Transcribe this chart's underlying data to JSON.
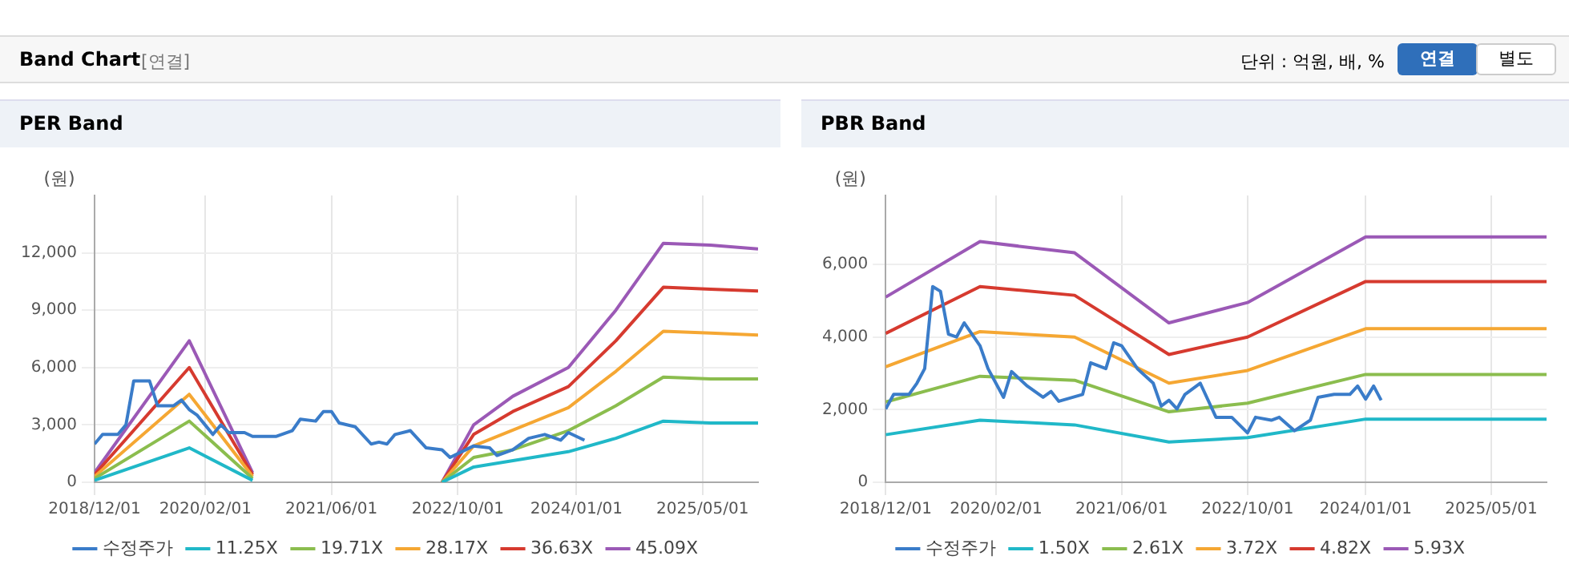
{
  "chart_data": [
    {
      "type": "other",
      "title": "Band Chart",
      "annotations": [
        "[연결]",
        "단위 : 억원, 배, %",
        "연결",
        "별도"
      ]
    },
    {
      "type": "line",
      "title": "PER Band",
      "ylabel": "(원)",
      "xlim": [
        "2018-12-01",
        "2025-12-01"
      ],
      "xticks": [
        {
          "value": "2018-12-01",
          "label": "2018/12/01"
        },
        {
          "value": "2020-02-01",
          "label": "2020/02/01"
        },
        {
          "value": "2021-06-01",
          "label": "2021/06/01"
        },
        {
          "value": "2022-10-01",
          "label": "2022/10/01"
        },
        {
          "value": "2024-01-01",
          "label": "2024/01/01"
        },
        {
          "value": "2025-05-01",
          "label": "2025/05/01"
        }
      ],
      "ylim": [
        0,
        15000
      ],
      "yticks": [
        {
          "value": 0,
          "label": "0"
        },
        {
          "value": 3000,
          "label": "3,000"
        },
        {
          "value": 6000,
          "label": "6,000"
        },
        {
          "value": 9000,
          "label": "9,000"
        },
        {
          "value": 12000,
          "label": "12,000"
        }
      ],
      "grid": true,
      "legend": "bottom",
      "marker": "none",
      "series": [
        {
          "name": "수정주가",
          "color": "#3a7cc9",
          "x": [
            "2018-12",
            "2019-01",
            "2019-03",
            "2019-04",
            "2019-05",
            "2019-07",
            "2019-08",
            "2019-10",
            "2019-11",
            "2019-12",
            "2020-01",
            "2020-03",
            "2020-04",
            "2020-05",
            "2020-07",
            "2020-08",
            "2020-11",
            "2021-01",
            "2021-02",
            "2021-04",
            "2021-05",
            "2021-06",
            "2021-07",
            "2021-09",
            "2021-11",
            "2021-12",
            "2022-01",
            "2022-02",
            "2022-04",
            "2022-06",
            "2022-08",
            "2022-09",
            "2022-12",
            "2023-02",
            "2023-03",
            "2023-05",
            "2023-07",
            "2023-09",
            "2023-11",
            "2023-12",
            "2024-02"
          ],
          "values": [
            2000,
            2500,
            2500,
            3000,
            5300,
            5300,
            4000,
            4000,
            4300,
            3800,
            3500,
            2500,
            3000,
            2600,
            2600,
            2400,
            2400,
            2700,
            3300,
            3200,
            3700,
            3700,
            3100,
            2900,
            2000,
            2100,
            2000,
            2500,
            2700,
            1800,
            1700,
            1300,
            1900,
            1800,
            1400,
            1700,
            2300,
            2500,
            2200,
            2600,
            2200
          ]
        },
        {
          "name": "11.25X",
          "color": "#20b8c8",
          "x": [
            "2018-12",
            "2019-12",
            "2020-08",
            "2021-06",
            "2022-08",
            "2022-12",
            "2023-12",
            "2024-06",
            "2024-12",
            "2025-06",
            "2025-12"
          ],
          "values": [
            100,
            1800,
            100,
            null,
            0,
            800,
            1600,
            2300,
            3200,
            3100,
            3100
          ]
        },
        {
          "name": "19.71X",
          "color": "#8bbd4e",
          "x": [
            "2018-12",
            "2019-12",
            "2020-08",
            "2021-06",
            "2022-08",
            "2022-12",
            "2023-05",
            "2023-12",
            "2024-06",
            "2024-12",
            "2025-06",
            "2025-12"
          ],
          "values": [
            200,
            3200,
            200,
            null,
            0,
            1300,
            1700,
            2700,
            4000,
            5500,
            5400,
            5400
          ]
        },
        {
          "name": "28.17X",
          "color": "#f5a733",
          "x": [
            "2018-12",
            "2019-12",
            "2020-08",
            "2021-06",
            "2022-08",
            "2022-12",
            "2023-12",
            "2024-06",
            "2024-12",
            "2025-06",
            "2025-12"
          ],
          "values": [
            300,
            4600,
            300,
            null,
            0,
            1900,
            3900,
            5800,
            7900,
            7800,
            7700
          ]
        },
        {
          "name": "36.63X",
          "color": "#d63a2f",
          "x": [
            "2018-12",
            "2019-12",
            "2020-08",
            "2021-06",
            "2022-08",
            "2022-12",
            "2023-05",
            "2023-12",
            "2024-06",
            "2024-12",
            "2025-06",
            "2025-12"
          ],
          "values": [
            400,
            6000,
            400,
            null,
            0,
            2500,
            3700,
            5000,
            7400,
            10200,
            10100,
            10000
          ]
        },
        {
          "name": "45.09X",
          "color": "#9b59b6",
          "x": [
            "2018-12",
            "2019-12",
            "2020-08",
            "2021-06",
            "2022-08",
            "2022-12",
            "2023-05",
            "2023-12",
            "2024-06",
            "2024-12",
            "2025-06",
            "2025-12"
          ],
          "values": [
            500,
            7400,
            500,
            null,
            0,
            3000,
            4500,
            6000,
            9000,
            12500,
            12400,
            12200
          ]
        }
      ]
    },
    {
      "type": "line",
      "title": "PBR Band",
      "ylabel": "(원)",
      "xlim": [
        "2018-12-01",
        "2025-12-01"
      ],
      "xticks": [
        {
          "value": "2018-12-01",
          "label": "2018/12/01"
        },
        {
          "value": "2020-02-01",
          "label": "2020/02/01"
        },
        {
          "value": "2021-06-01",
          "label": "2021/06/01"
        },
        {
          "value": "2022-10-01",
          "label": "2022/10/01"
        },
        {
          "value": "2024-01-01",
          "label": "2024/01/01"
        },
        {
          "value": "2025-05-01",
          "label": "2025/05/01"
        }
      ],
      "ylim": [
        0,
        7900
      ],
      "yticks": [
        {
          "value": 0,
          "label": "0"
        },
        {
          "value": 2000,
          "label": "2,000"
        },
        {
          "value": 4000,
          "label": "4,000"
        },
        {
          "value": 6000,
          "label": "6,000"
        }
      ],
      "grid": true,
      "legend": "bottom",
      "marker": "none",
      "series": [
        {
          "name": "수정주가",
          "color": "#3a7cc9",
          "x": [
            "2018-12",
            "2019-01",
            "2019-03",
            "2019-04",
            "2019-05",
            "2019-06",
            "2019-07",
            "2019-08",
            "2019-09",
            "2019-10",
            "2019-12",
            "2020-01",
            "2020-03",
            "2020-04",
            "2020-06",
            "2020-08",
            "2020-09",
            "2020-10",
            "2021-01",
            "2021-02",
            "2021-04",
            "2021-05",
            "2021-06",
            "2021-08",
            "2021-10",
            "2021-11",
            "2021-12",
            "2022-01",
            "2022-02",
            "2022-04",
            "2022-06",
            "2022-08",
            "2022-10",
            "2022-11",
            "2023-01",
            "2023-02",
            "2023-04",
            "2023-06",
            "2023-07",
            "2023-09",
            "2023-11",
            "2023-12",
            "2024-01",
            "2024-02",
            "2024-03"
          ],
          "values": [
            2020,
            2420,
            2420,
            2730,
            3130,
            5390,
            5260,
            4080,
            4000,
            4390,
            3760,
            3130,
            2340,
            3050,
            2650,
            2340,
            2500,
            2230,
            2420,
            3290,
            3130,
            3840,
            3760,
            3130,
            2730,
            2100,
            2260,
            2020,
            2420,
            2730,
            1790,
            1790,
            1360,
            1790,
            1710,
            1790,
            1420,
            1710,
            2340,
            2420,
            2420,
            2650,
            2290,
            2650,
            2260
          ]
        },
        {
          "name": "1.50X",
          "color": "#20b8c8",
          "x": [
            "2018-12",
            "2019-12",
            "2020-12",
            "2021-12",
            "2022-10",
            "2024-01",
            "2025-12"
          ],
          "values": [
            1310,
            1710,
            1580,
            1110,
            1230,
            1740,
            1740
          ]
        },
        {
          "name": "2.61X",
          "color": "#8bbd4e",
          "x": [
            "2018-12",
            "2019-12",
            "2020-12",
            "2021-12",
            "2022-10",
            "2024-01",
            "2025-12"
          ],
          "values": [
            2210,
            2920,
            2810,
            1940,
            2180,
            2970,
            2970
          ]
        },
        {
          "name": "3.72X",
          "color": "#f5a733",
          "x": [
            "2018-12",
            "2019-12",
            "2020-12",
            "2021-12",
            "2022-10",
            "2024-01",
            "2025-12"
          ],
          "values": [
            3180,
            4150,
            4000,
            2730,
            3080,
            4230,
            4230
          ]
        },
        {
          "name": "4.82X",
          "color": "#d63a2f",
          "x": [
            "2018-12",
            "2019-12",
            "2020-12",
            "2021-12",
            "2022-10",
            "2024-01",
            "2025-12"
          ],
          "values": [
            4100,
            5390,
            5150,
            3520,
            4000,
            5530,
            5530
          ]
        },
        {
          "name": "5.93X",
          "color": "#9b59b6",
          "x": [
            "2018-12",
            "2019-12",
            "2020-12",
            "2021-12",
            "2022-10",
            "2024-01",
            "2025-12"
          ],
          "values": [
            5100,
            6630,
            6320,
            4390,
            4950,
            6760,
            6760
          ]
        }
      ]
    }
  ]
}
